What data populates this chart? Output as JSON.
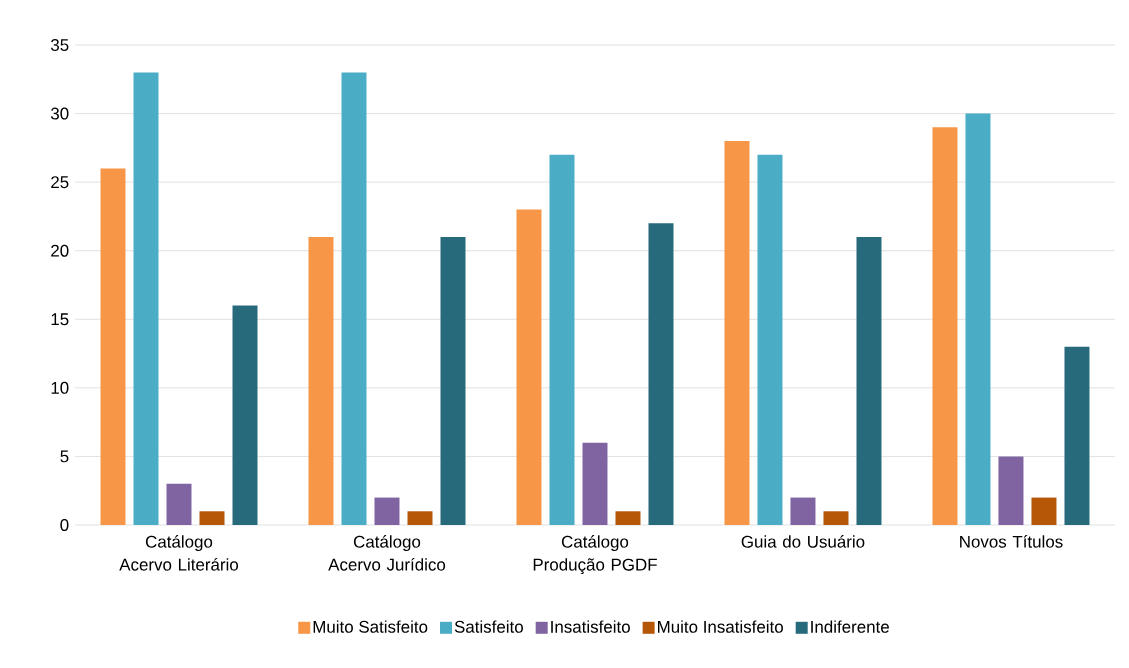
{
  "chart_data": {
    "type": "bar",
    "categories": [
      "Catálogo Acervo Literário",
      "Catálogo Acervo Jurídico",
      "Catálogo Produção PGDF",
      "Guia do Usuário",
      "Novos Títulos"
    ],
    "series": [
      {
        "name": "Muito Satisfeito",
        "color": "#f79646",
        "values": [
          26,
          21,
          23,
          28,
          29
        ]
      },
      {
        "name": "Satisfeito",
        "color": "#4bacc6",
        "values": [
          33,
          33,
          27,
          27,
          30
        ]
      },
      {
        "name": "Insatisfeito",
        "color": "#8064a2",
        "values": [
          3,
          2,
          6,
          2,
          5
        ]
      },
      {
        "name": "Muito Insatisfeito",
        "color": "#b65708",
        "values": [
          1,
          1,
          1,
          1,
          2
        ]
      },
      {
        "name": "Indiferente",
        "color": "#276a7c",
        "values": [
          16,
          21,
          22,
          21,
          13
        ]
      }
    ],
    "ylim": [
      0,
      35
    ],
    "yticks": [
      0,
      5,
      10,
      15,
      20,
      25,
      30,
      35
    ],
    "grid": "y",
    "legend": "bottom"
  }
}
